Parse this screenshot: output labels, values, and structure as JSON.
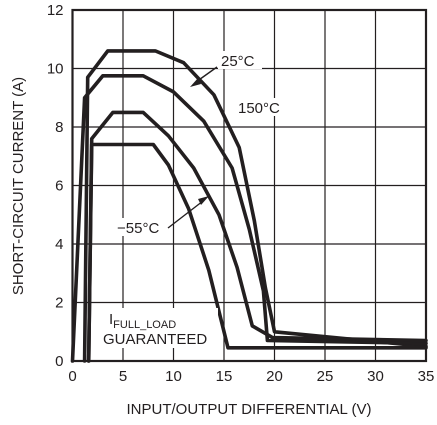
{
  "chart_data": {
    "type": "line",
    "xlabel": "INPUT/OUTPUT DIFFERENTIAL (V)",
    "ylabel": "SHORT-CIRCUIT CURRENT (A)",
    "xlim": [
      0,
      35
    ],
    "ylim": [
      0,
      12
    ],
    "xticks": [
      0,
      5,
      10,
      15,
      20,
      25,
      30,
      35
    ],
    "yticks": [
      0,
      2,
      4,
      6,
      8,
      10,
      12
    ],
    "grid": true,
    "series": [
      {
        "name": "25°C",
        "points": [
          [
            1.2,
            0
          ],
          [
            1.5,
            9.7
          ],
          [
            3.5,
            10.6
          ],
          [
            8.2,
            10.6
          ],
          [
            11,
            10.2
          ],
          [
            14,
            9.1
          ],
          [
            16.5,
            7.3
          ],
          [
            18,
            4.8
          ],
          [
            19.1,
            2.5
          ],
          [
            20,
            1.0
          ],
          [
            35,
            0.5
          ]
        ]
      },
      {
        "name": "150°C",
        "points": [
          [
            0,
            0
          ],
          [
            1.2,
            9.0
          ],
          [
            3,
            9.75
          ],
          [
            7,
            9.75
          ],
          [
            10,
            9.2
          ],
          [
            13,
            8.2
          ],
          [
            15.8,
            6.6
          ],
          [
            17.5,
            4.5
          ],
          [
            18.9,
            2.4
          ],
          [
            19.3,
            0.7
          ],
          [
            35,
            0.6
          ]
        ]
      },
      {
        "name": "−55°C",
        "points": [
          [
            1.6,
            0
          ],
          [
            1.9,
            7.6
          ],
          [
            4,
            8.5
          ],
          [
            7,
            8.5
          ],
          [
            9.5,
            7.7
          ],
          [
            12,
            6.6
          ],
          [
            14.5,
            5.0
          ],
          [
            16.3,
            3.2
          ],
          [
            17.8,
            1.2
          ],
          [
            19.8,
            0.8
          ],
          [
            35,
            0.7
          ]
        ]
      },
      {
        "name": "",
        "points": [
          [
            1.6,
            0
          ],
          [
            1.9,
            7.4
          ],
          [
            8,
            7.4
          ],
          [
            9.5,
            6.7
          ],
          [
            11.5,
            5.2
          ],
          [
            13.5,
            3.1
          ],
          [
            15.4,
            0.45
          ],
          [
            35,
            0.45
          ]
        ]
      }
    ],
    "annotations": {
      "t25": "25°C",
      "t150": "150°C",
      "tm55": "−55°C",
      "ifull_main": "I",
      "ifull_sub": "FULL_LOAD",
      "guaranteed": "GUARANTEED"
    }
  }
}
